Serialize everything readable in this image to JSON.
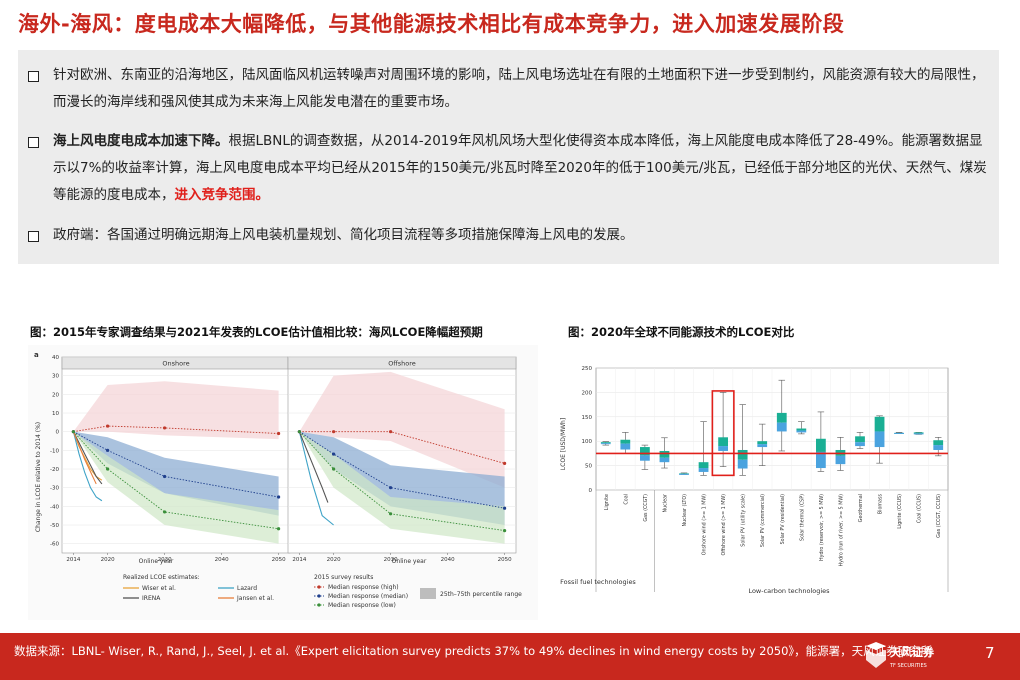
{
  "title": "海外-海风：度电成本大幅降低，与其他能源技术相比有成本竞争力，进入加速发展阶段",
  "bullets": [
    {
      "text": "针对欧洲、东南亚的沿海地区，陆风面临风机运转噪声对周围环境的影响，陆上风电场选址在有限的土地面积下进一步受到制约，风能资源有较大的局限性，而漫长的海岸线和强风使其成为未来海上风能发电潜在的重要市场。"
    },
    {
      "bold": "海上风电度电成本加速下降。",
      "text": "根据LBNL的调查数据，从2014-2019年风机风场大型化使得资本成本降低，海上风能度电成本降低了28-49%。能源署数据显示以7%的收益率计算，海上风电度电成本平均已经从2015年的150美元/兆瓦时降至2020年的低于100美元/兆瓦，已经低于部分地区的光伏、天然气、煤炭等能源的度电成本，",
      "highlight": "进入竞争范围。"
    },
    {
      "text": "政府端：各国通过明确远期海上风电装机量规划、简化项目流程等多项措施保障海上风电的发展。"
    }
  ],
  "figure_left": {
    "caption": "图：2015年专家调查结果与2021年发表的LCOE估计值相比较：海风LCOE降幅超预期",
    "panel_letter": "a",
    "ylabel": "Change in LCOE relative to 2014 (%)",
    "xlabel": "Online year",
    "legend_realized_title": "Realized LCOE estimates:",
    "legend_realized": [
      "Wiser et al.",
      "Lazard",
      "IRENA",
      "Jansen et al."
    ],
    "legend_survey_title": "2015 survey results",
    "legend_survey": [
      "Median response (high)",
      "Median response (median)",
      "Median response (low)"
    ],
    "legend_range": "25th–75th percentile range"
  },
  "figure_right": {
    "caption": "图：2020年全球不同能源技术的LCOE对比",
    "ylabel": "LCOE [USD/MWh]",
    "group_fossil": "Fossil fuel technologies",
    "group_lowcarbon": "Low-carbon technologies"
  },
  "chart_data": [
    {
      "type": "line",
      "panel": "Onshore",
      "x": [
        2014,
        2020,
        2030,
        2050
      ],
      "xlim": [
        2012,
        2052
      ],
      "ylim": [
        -65,
        40
      ],
      "yticks": [
        40,
        30,
        20,
        10,
        0,
        -10,
        -20,
        -30,
        -40,
        -50,
        -60
      ],
      "xticks": [
        2014,
        2020,
        2030,
        2040,
        2050
      ],
      "grid": true,
      "series": [
        {
          "name": "Median response (high)",
          "values": [
            0,
            3,
            2,
            -1
          ]
        },
        {
          "name": "Median response (median)",
          "values": [
            0,
            -10,
            -24,
            -35
          ]
        },
        {
          "name": "Median response (low)",
          "values": [
            0,
            -20,
            -43,
            -52
          ]
        }
      ],
      "bands": [
        {
          "name": "high",
          "lower": [
            0,
            0,
            -2,
            -4
          ],
          "upper": [
            0,
            25,
            27,
            22
          ]
        },
        {
          "name": "median",
          "lower": [
            0,
            -17,
            -33,
            -45
          ],
          "upper": [
            0,
            -3,
            -14,
            -24
          ]
        },
        {
          "name": "low",
          "lower": [
            0,
            -27,
            -50,
            -60
          ],
          "upper": [
            0,
            -13,
            -33,
            -42
          ]
        }
      ],
      "realized": [
        {
          "name": "Wiser et al.",
          "color": "#e8a33c",
          "x": [
            2014,
            2015,
            2016,
            2017,
            2018,
            2019
          ],
          "values": [
            0,
            -8,
            -14,
            -20,
            -24,
            -26
          ]
        },
        {
          "name": "Lazard",
          "color": "#3fa3c7",
          "x": [
            2014,
            2015,
            2016,
            2017,
            2018,
            2019
          ],
          "values": [
            0,
            -12,
            -22,
            -30,
            -35,
            -37
          ]
        },
        {
          "name": "IRENA",
          "color": "#555555",
          "x": [
            2014,
            2015,
            2016,
            2017,
            2018,
            2019
          ],
          "values": [
            0,
            -6,
            -12,
            -18,
            -24,
            -28
          ]
        },
        {
          "name": "Jansen et al.",
          "color": "#e87f3c",
          "x": [
            2014,
            2016,
            2018
          ],
          "values": [
            0,
            -15,
            -28
          ]
        }
      ]
    },
    {
      "type": "line",
      "panel": "Offshore",
      "x": [
        2014,
        2020,
        2030,
        2050
      ],
      "xlim": [
        2012,
        2052
      ],
      "ylim": [
        -65,
        40
      ],
      "xticks": [
        2014,
        2020,
        2030,
        2040,
        2050
      ],
      "grid": true,
      "series": [
        {
          "name": "Median response (high)",
          "values": [
            0,
            0,
            0,
            -17
          ]
        },
        {
          "name": "Median response (median)",
          "values": [
            0,
            -12,
            -30,
            -41
          ]
        },
        {
          "name": "Median response (low)",
          "values": [
            0,
            -20,
            -44,
            -53
          ]
        }
      ],
      "bands": [
        {
          "name": "high",
          "lower": [
            0,
            -3,
            -5,
            -30
          ],
          "upper": [
            0,
            30,
            32,
            12
          ]
        },
        {
          "name": "median",
          "lower": [
            0,
            -20,
            -40,
            -50
          ],
          "upper": [
            0,
            -3,
            -18,
            -24
          ]
        },
        {
          "name": "low",
          "lower": [
            0,
            -30,
            -52,
            -60
          ],
          "upper": [
            0,
            -12,
            -35,
            -40
          ]
        }
      ],
      "realized": [
        {
          "name": "Lazard",
          "color": "#3fa3c7",
          "x": [
            2014,
            2016,
            2018,
            2020
          ],
          "values": [
            0,
            -25,
            -45,
            -50
          ]
        },
        {
          "name": "IRENA",
          "color": "#555555",
          "x": [
            2014,
            2016,
            2018,
            2019
          ],
          "values": [
            0,
            -15,
            -30,
            -38
          ]
        }
      ]
    },
    {
      "type": "box",
      "ylim": [
        0,
        250
      ],
      "yticks": [
        0,
        50,
        100,
        150,
        200,
        250
      ],
      "reference_line": 75,
      "highlighted": "Offshore wind (>= 1 MW)",
      "categories": [
        "Lignite",
        "Coal",
        "Gas (CCGT)",
        "Nuclear",
        "Nuclear (LTO)",
        "Onshore wind (>= 1 MW)",
        "Offshore wind (>= 1 MW)",
        "Solar PV (utility scale)",
        "Solar PV (commercial)",
        "Solar PV (residential)",
        "Solar thermal (CSP)",
        "Hydro (reservoir, >= 5 MW)",
        "Hydro (run of river, >= 5 MW)",
        "Geothermal",
        "Biomass",
        "Lignite (CCUS)",
        "Coal (CCUS)",
        "Gas (CCGT, CCUS)"
      ],
      "boxes": [
        {
          "min": 92,
          "q1": 94,
          "median": 96,
          "q3": 98,
          "max": 99
        },
        {
          "min": 75,
          "q1": 83,
          "median": 95,
          "q3": 103,
          "max": 118
        },
        {
          "min": 42,
          "q1": 60,
          "median": 71,
          "q3": 88,
          "max": 92
        },
        {
          "min": 45,
          "q1": 57,
          "median": 66,
          "q3": 80,
          "max": 107
        },
        {
          "min": 32,
          "q1": 32,
          "median": 33,
          "q3": 34,
          "max": 35
        },
        {
          "min": 30,
          "q1": 37,
          "median": 45,
          "q3": 57,
          "max": 140
        },
        {
          "min": 48,
          "q1": 80,
          "median": 90,
          "q3": 108,
          "max": 200
        },
        {
          "min": 30,
          "q1": 44,
          "median": 62,
          "q3": 82,
          "max": 175
        },
        {
          "min": 50,
          "q1": 88,
          "median": 94,
          "q3": 100,
          "max": 135
        },
        {
          "min": 80,
          "q1": 120,
          "median": 138,
          "q3": 158,
          "max": 225
        },
        {
          "min": 115,
          "q1": 118,
          "median": 122,
          "q3": 126,
          "max": 140
        },
        {
          "min": 38,
          "q1": 45,
          "median": 78,
          "q3": 105,
          "max": 160
        },
        {
          "min": 40,
          "q1": 53,
          "median": 70,
          "q3": 82,
          "max": 108
        },
        {
          "min": 85,
          "q1": 90,
          "median": 98,
          "q3": 110,
          "max": 118
        },
        {
          "min": 55,
          "q1": 88,
          "median": 120,
          "q3": 150,
          "max": 152
        },
        {
          "min": 117,
          "q1": 117,
          "median": 117,
          "q3": 117,
          "max": 118
        },
        {
          "min": 114,
          "q1": 114,
          "median": 116,
          "q3": 118,
          "max": 118
        },
        {
          "min": 70,
          "q1": 82,
          "median": 92,
          "q3": 102,
          "max": 108
        }
      ]
    }
  ],
  "footer": {
    "source": "数据来源：LBNL- Wiser, R., Rand, J., Seel, J. et al.《Expert elicitation survey predicts 37% to 49% declines in wind energy costs by 2050》，能源署，天风证券研究所",
    "page": "7",
    "logo_cn": "天风证券",
    "logo_en": "TF SECURITIES"
  },
  "colors": {
    "accent": "#c8281e",
    "highlight_text": "#e0201b",
    "band_high": "#f4d3d6",
    "band_median": "#8eaed3",
    "band_low": "#cfe7c6"
  }
}
